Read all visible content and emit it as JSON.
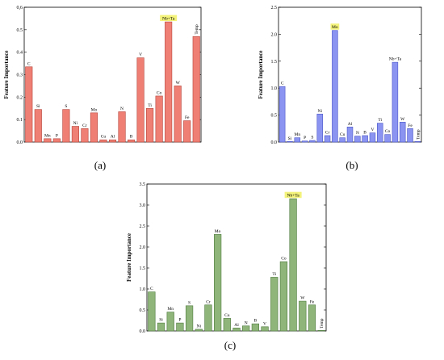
{
  "figure": {
    "panel_labels": [
      "(a)",
      "(b)",
      "(c)"
    ]
  },
  "colors": {
    "a_fill": "#ef7f74",
    "a_stroke": "#b5443b",
    "b_fill": "#8b94f0",
    "b_stroke": "#4b56c8",
    "c_fill": "#8fb57b",
    "c_stroke": "#4d7a3c",
    "highlight": "#f3f27a"
  },
  "chart_data": [
    {
      "type": "bar",
      "panel": "(a)",
      "ylabel": "Feature Importance",
      "ylim": [
        0,
        0.6
      ],
      "yticks": [
        "0.0",
        "0.1",
        "0.2",
        "0.3",
        "0.4",
        "0.5",
        "0,6"
      ],
      "categories": [
        "C",
        "Si",
        "Mn",
        "P",
        "S",
        "Ni",
        "Cr",
        "Mo",
        "Cu",
        "Al",
        "N",
        "B",
        "V",
        "Ti",
        "Co",
        "Nb+Ta",
        "W",
        "Fe",
        "Temp"
      ],
      "values": [
        0.335,
        0.145,
        0.015,
        0.015,
        0.145,
        0.07,
        0.06,
        0.13,
        0.01,
        0.01,
        0.135,
        0.01,
        0.375,
        0.15,
        0.205,
        0.535,
        0.25,
        0.095,
        0.47
      ],
      "highlighted_label": "Nb+Ta"
    },
    {
      "type": "bar",
      "panel": "(b)",
      "ylabel": "Feature Importance",
      "ylim": [
        0,
        2.5
      ],
      "yticks": [
        "0.0",
        "0.5",
        "1.0",
        "1.5",
        "2.0",
        "2.5"
      ],
      "categories": [
        "C",
        "Si",
        "Mn",
        "P",
        "S",
        "Ni",
        "Cr",
        "Mo",
        "Cu",
        "Al",
        "N",
        "B",
        "V",
        "Ti",
        "Co",
        "Nb+Ta",
        "W",
        "Fe",
        "Temp"
      ],
      "values": [
        1.03,
        0.01,
        0.08,
        0.02,
        0.03,
        0.52,
        0.12,
        2.07,
        0.08,
        0.28,
        0.11,
        0.12,
        0.17,
        0.35,
        0.14,
        1.48,
        0.37,
        0.25,
        0.01
      ],
      "highlighted_label": "Mo"
    },
    {
      "type": "bar",
      "panel": "(c)",
      "ylabel": "Feature Importance",
      "ylim": [
        0,
        3.5
      ],
      "yticks": [
        "0.0",
        "0.5",
        "1.0",
        "1.5",
        "2.0",
        "2.5",
        "3.0",
        "3.5"
      ],
      "categories": [
        "C",
        "Si",
        "Mn",
        "P",
        "S",
        "Ni",
        "Cr",
        "Mo",
        "Cu",
        "Al",
        "N",
        "B",
        "V",
        "Ti",
        "Co",
        "Nb+Ta",
        "W",
        "Fe",
        "Temp"
      ],
      "values": [
        0.93,
        0.19,
        0.45,
        0.19,
        0.6,
        0.04,
        0.62,
        2.3,
        0.3,
        0.07,
        0.12,
        0.17,
        0.1,
        1.28,
        1.65,
        3.15,
        0.71,
        0.62,
        0.01
      ],
      "highlighted_label": "Nb+Ta"
    }
  ]
}
